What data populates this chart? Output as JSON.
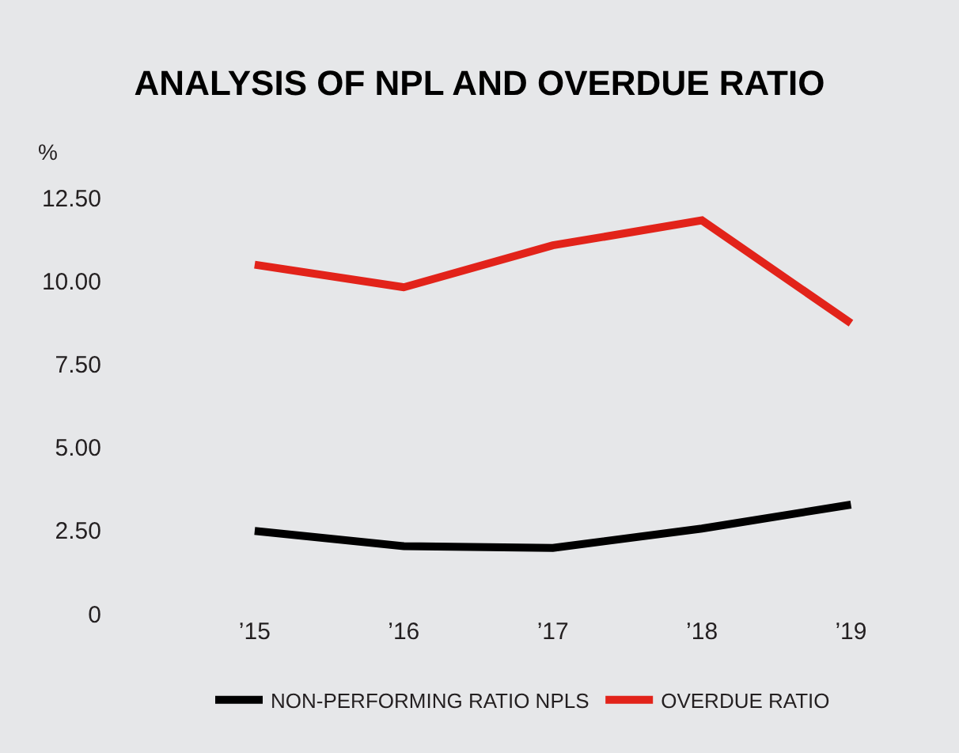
{
  "chart_data": {
    "type": "line",
    "title": "ANALYSIS OF NPL AND OVERDUE RATIO",
    "ylabel": "%",
    "categories": [
      "’15",
      "’16",
      "’17",
      "’18",
      "’19"
    ],
    "series": [
      {
        "name": "NON-PERFORMING RATIO NPLS",
        "color": "#000000",
        "values": [
          2.49,
          2.03,
          1.98,
          2.56,
          3.28
        ]
      },
      {
        "name": "OVERDUE RATIO",
        "color": "#e2231a",
        "values": [
          10.49,
          9.81,
          11.07,
          11.82,
          8.73
        ]
      }
    ],
    "ylim": [
      0,
      12.5
    ],
    "yticks": [
      {
        "value": 0,
        "label": "0"
      },
      {
        "value": 2.5,
        "label": "2.50"
      },
      {
        "value": 5,
        "label": "5.00"
      },
      {
        "value": 7.5,
        "label": "7.50"
      },
      {
        "value": 10,
        "label": "10.00"
      },
      {
        "value": 12.5,
        "label": "12.50"
      }
    ],
    "grid": false,
    "legend": "bottom",
    "marker": "none",
    "line_style": "solid"
  }
}
